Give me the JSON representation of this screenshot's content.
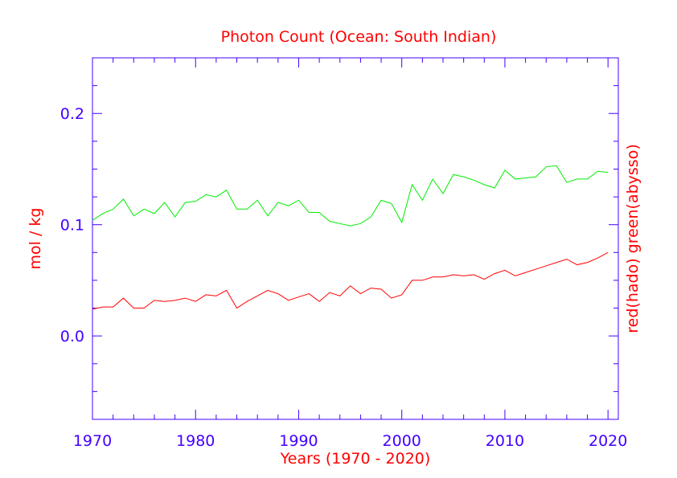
{
  "chart_data": {
    "type": "line",
    "title": "Photon Count (Ocean: South Indian)",
    "xlabel": "Years (1970 - 2020)",
    "ylabel": "mol / kg",
    "ylabel_right": "red(hado) green(abysso)",
    "xlim": [
      1970,
      2021
    ],
    "ylim": [
      -0.075,
      0.25
    ],
    "xticks": [
      1970,
      1980,
      1990,
      2000,
      2010,
      2020
    ],
    "xtick_labels": [
      "1970",
      "1980",
      "1990",
      "2000",
      "2010",
      "2020"
    ],
    "yticks": [
      0.0,
      0.1,
      0.2
    ],
    "ytick_labels": [
      "0.0",
      "0.1",
      "0.2"
    ],
    "colors": {
      "title": "#ff0000",
      "axis": "#4400ff",
      "labels": "#ff0000",
      "red_series": "#ff0000",
      "green_series": "#00ee00"
    },
    "x": [
      1970,
      1971,
      1972,
      1973,
      1974,
      1975,
      1976,
      1977,
      1978,
      1979,
      1980,
      1981,
      1982,
      1983,
      1984,
      1985,
      1986,
      1987,
      1988,
      1989,
      1990,
      1991,
      1992,
      1993,
      1994,
      1995,
      1996,
      1997,
      1998,
      1999,
      2000,
      2001,
      2002,
      2003,
      2004,
      2005,
      2006,
      2007,
      2008,
      2009,
      2010,
      2011,
      2012,
      2013,
      2014,
      2015,
      2016,
      2017,
      2018,
      2019,
      2020
    ],
    "series": [
      {
        "name": "red(hado)",
        "color": "#ff0000",
        "values": [
          0.024,
          0.026,
          0.026,
          0.034,
          0.025,
          0.025,
          0.032,
          0.031,
          0.032,
          0.034,
          0.031,
          0.037,
          0.036,
          0.041,
          0.025,
          0.031,
          0.036,
          0.041,
          0.038,
          0.032,
          0.035,
          0.038,
          0.031,
          0.039,
          0.036,
          0.045,
          0.038,
          0.043,
          0.042,
          0.034,
          0.037,
          0.05,
          0.05,
          0.053,
          0.053,
          0.055,
          0.054,
          0.055,
          0.051,
          0.056,
          0.059,
          0.054,
          0.057,
          0.06,
          0.063,
          0.066,
          0.069,
          0.064,
          0.066,
          0.07,
          0.075
        ]
      },
      {
        "name": "green(abysso)",
        "color": "#00ee00",
        "values": [
          0.104,
          0.11,
          0.114,
          0.123,
          0.108,
          0.114,
          0.11,
          0.12,
          0.107,
          0.12,
          0.121,
          0.127,
          0.125,
          0.131,
          0.114,
          0.114,
          0.122,
          0.108,
          0.12,
          0.117,
          0.122,
          0.111,
          0.111,
          0.103,
          0.101,
          0.099,
          0.101,
          0.107,
          0.122,
          0.119,
          0.102,
          0.136,
          0.122,
          0.141,
          0.128,
          0.145,
          0.143,
          0.14,
          0.136,
          0.133,
          0.149,
          0.141,
          0.142,
          0.143,
          0.152,
          0.153,
          0.138,
          0.141,
          0.141,
          0.148,
          0.147
        ]
      }
    ]
  }
}
